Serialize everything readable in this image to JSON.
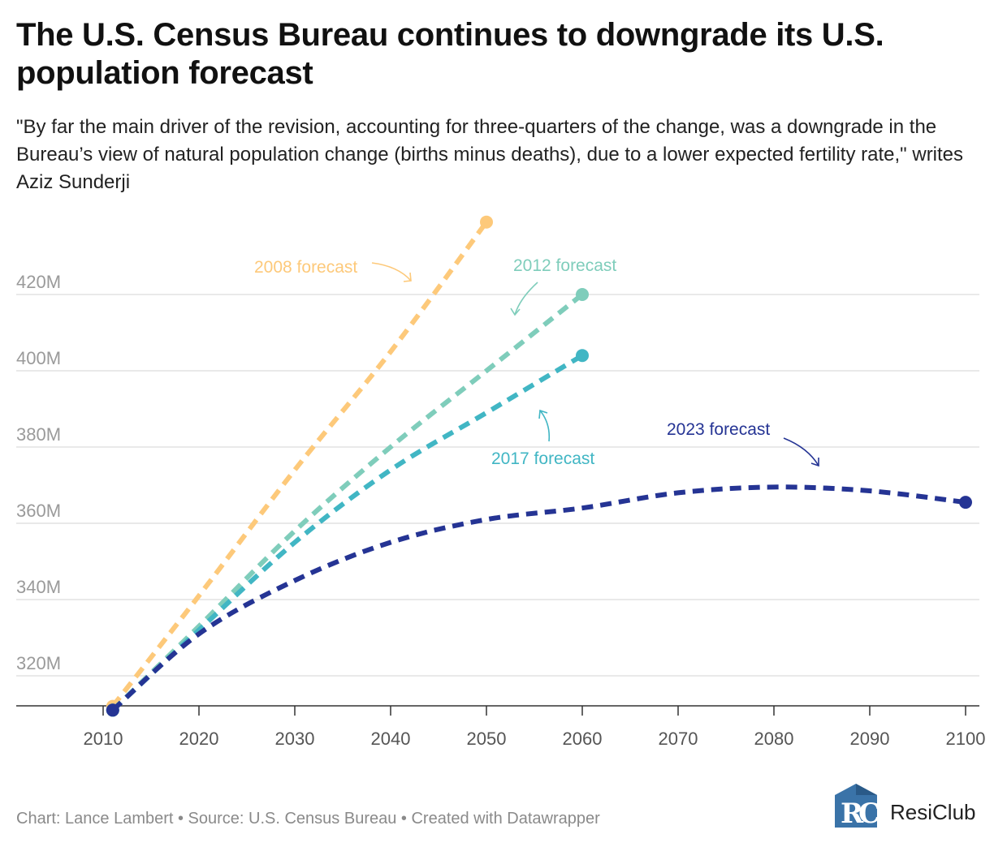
{
  "title": "The U.S. Census Bureau continues to downgrade its U.S. population forecast",
  "subtitle": "\"By far the main driver of the revision, accounting for three-quarters of the change, was a downgrade in the Bureau’s view of natural population change (births minus deaths), due to a lower expected fertility rate,\" writes Aziz Sunderji",
  "footer": "Chart: Lance Lambert • Source: U.S. Census Bureau • Created with Datawrapper",
  "logo": {
    "text": "ResiClub",
    "mark_letters": "RC"
  },
  "chart_data": {
    "type": "line",
    "title": "The U.S. Census Bureau continues to downgrade its U.S. population forecast",
    "xlabel": "",
    "ylabel": "",
    "xlim": [
      2010,
      2100
    ],
    "ylim": [
      310,
      440
    ],
    "x_ticks": [
      2010,
      2020,
      2030,
      2040,
      2050,
      2060,
      2070,
      2080,
      2090,
      2100
    ],
    "x_tick_labels": [
      "2010",
      "2020",
      "2030",
      "2040",
      "2050",
      "2060",
      "2070",
      "2080",
      "2090",
      "2100"
    ],
    "y_ticks": [
      320,
      340,
      360,
      380,
      400,
      420
    ],
    "y_tick_labels": [
      "320M",
      "340M",
      "360M",
      "380M",
      "400M",
      "420M"
    ],
    "grid": true,
    "legend": "none (inline labels)",
    "series": [
      {
        "name": "2008 forecast",
        "color": "#fdc97a",
        "x": [
          2011,
          2020,
          2030,
          2040,
          2050
        ],
        "y": [
          312,
          341,
          374,
          405,
          439
        ]
      },
      {
        "name": "2012 forecast",
        "color": "#7fcdbb",
        "x": [
          2011,
          2020,
          2030,
          2040,
          2050,
          2060
        ],
        "y": [
          311,
          333,
          358,
          380,
          400,
          420
        ]
      },
      {
        "name": "2017 forecast",
        "color": "#41b6c4",
        "x": [
          2011,
          2020,
          2030,
          2040,
          2050,
          2060
        ],
        "y": [
          311,
          332,
          355,
          374,
          389,
          404
        ]
      },
      {
        "name": "2023 forecast",
        "color": "#253494",
        "x": [
          2011,
          2020,
          2030,
          2040,
          2050,
          2060,
          2070,
          2080,
          2090,
          2100
        ],
        "y": [
          311,
          331,
          345,
          355,
          361,
          364,
          368,
          369.5,
          368.5,
          365.5
        ]
      }
    ]
  }
}
